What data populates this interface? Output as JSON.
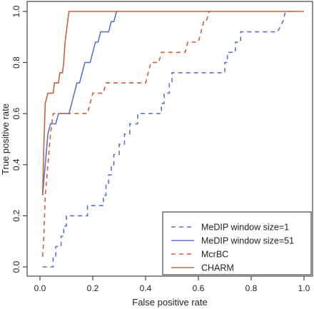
{
  "chart_data": {
    "type": "line",
    "title": "",
    "xlabel": "False positive rate",
    "ylabel": "True positive rate",
    "xlim": [
      0,
      1
    ],
    "ylim": [
      0,
      1
    ],
    "xticks": [
      "0.0",
      "0.2",
      "0.4",
      "0.6",
      "0.8",
      "1.0"
    ],
    "yticks": [
      "0.0",
      "0.2",
      "0.4",
      "0.6",
      "0.8",
      "1.0"
    ],
    "grid": false,
    "legend_position": "bottom-right",
    "series": [
      {
        "name": "MeDIP window size=1",
        "color": "#5b73c8",
        "dash": "dashed",
        "points": [
          [
            0.01,
            0
          ],
          [
            0.05,
            0
          ],
          [
            0.05,
            0.04
          ],
          [
            0.06,
            0.04
          ],
          [
            0.06,
            0.08
          ],
          [
            0.08,
            0.08
          ],
          [
            0.08,
            0.12
          ],
          [
            0.09,
            0.12
          ],
          [
            0.09,
            0.16
          ],
          [
            0.1,
            0.16
          ],
          [
            0.1,
            0.2
          ],
          [
            0.18,
            0.2
          ],
          [
            0.18,
            0.24
          ],
          [
            0.24,
            0.24
          ],
          [
            0.24,
            0.28
          ],
          [
            0.25,
            0.28
          ],
          [
            0.25,
            0.32
          ],
          [
            0.26,
            0.32
          ],
          [
            0.26,
            0.36
          ],
          [
            0.27,
            0.36
          ],
          [
            0.27,
            0.4
          ],
          [
            0.28,
            0.4
          ],
          [
            0.28,
            0.44
          ],
          [
            0.3,
            0.44
          ],
          [
            0.3,
            0.48
          ],
          [
            0.32,
            0.48
          ],
          [
            0.32,
            0.52
          ],
          [
            0.34,
            0.52
          ],
          [
            0.34,
            0.56
          ],
          [
            0.37,
            0.56
          ],
          [
            0.37,
            0.6
          ],
          [
            0.46,
            0.6
          ],
          [
            0.46,
            0.64
          ],
          [
            0.47,
            0.64
          ],
          [
            0.47,
            0.68
          ],
          [
            0.49,
            0.68
          ],
          [
            0.49,
            0.72
          ],
          [
            0.5,
            0.72
          ],
          [
            0.5,
            0.76
          ],
          [
            0.7,
            0.76
          ],
          [
            0.7,
            0.8
          ],
          [
            0.71,
            0.8
          ],
          [
            0.71,
            0.84
          ],
          [
            0.74,
            0.84
          ],
          [
            0.74,
            0.88
          ],
          [
            0.76,
            0.88
          ],
          [
            0.76,
            0.92
          ],
          [
            0.9,
            0.92
          ],
          [
            0.92,
            0.96
          ],
          [
            0.93,
            1.0
          ],
          [
            0.96,
            1.0
          ]
        ]
      },
      {
        "name": "MeDIP window size=51",
        "color": "#5b73c8",
        "dash": "solid",
        "points": [
          [
            0.01,
            0.28
          ],
          [
            0.02,
            0.4
          ],
          [
            0.03,
            0.52
          ],
          [
            0.04,
            0.56
          ],
          [
            0.06,
            0.56
          ],
          [
            0.07,
            0.6
          ],
          [
            0.11,
            0.6
          ],
          [
            0.12,
            0.64
          ],
          [
            0.13,
            0.68
          ],
          [
            0.14,
            0.72
          ],
          [
            0.15,
            0.72
          ],
          [
            0.16,
            0.76
          ],
          [
            0.17,
            0.8
          ],
          [
            0.19,
            0.8
          ],
          [
            0.2,
            0.84
          ],
          [
            0.21,
            0.88
          ],
          [
            0.22,
            0.88
          ],
          [
            0.23,
            0.92
          ],
          [
            0.26,
            0.92
          ],
          [
            0.27,
            0.96
          ],
          [
            0.28,
            0.96
          ],
          [
            0.29,
            1.0
          ],
          [
            0.3,
            1.0
          ]
        ]
      },
      {
        "name": "McrBC",
        "color": "#c8603c",
        "dash": "dashed",
        "points": [
          [
            0.01,
            0.04
          ],
          [
            0.015,
            0.12
          ],
          [
            0.02,
            0.28
          ],
          [
            0.03,
            0.4
          ],
          [
            0.04,
            0.52
          ],
          [
            0.05,
            0.6
          ],
          [
            0.18,
            0.6
          ],
          [
            0.19,
            0.64
          ],
          [
            0.2,
            0.68
          ],
          [
            0.24,
            0.68
          ],
          [
            0.25,
            0.72
          ],
          [
            0.4,
            0.72
          ],
          [
            0.41,
            0.76
          ],
          [
            0.42,
            0.8
          ],
          [
            0.45,
            0.8
          ],
          [
            0.46,
            0.84
          ],
          [
            0.55,
            0.84
          ],
          [
            0.56,
            0.88
          ],
          [
            0.6,
            0.88
          ],
          [
            0.61,
            0.92
          ],
          [
            0.62,
            0.96
          ],
          [
            0.63,
            0.96
          ],
          [
            0.64,
            1.0
          ],
          [
            0.66,
            1.0
          ]
        ]
      },
      {
        "name": "CHARM",
        "color": "#c8603c",
        "dash": "solid",
        "points": [
          [
            0.01,
            0.28
          ],
          [
            0.015,
            0.48
          ],
          [
            0.02,
            0.64
          ],
          [
            0.03,
            0.68
          ],
          [
            0.05,
            0.68
          ],
          [
            0.055,
            0.72
          ],
          [
            0.07,
            0.72
          ],
          [
            0.075,
            0.76
          ],
          [
            0.085,
            0.76
          ],
          [
            0.09,
            0.8
          ],
          [
            0.095,
            0.88
          ],
          [
            0.1,
            0.92
          ],
          [
            0.105,
            0.96
          ],
          [
            0.11,
            1.0
          ],
          [
            0.13,
            1.0
          ],
          [
            1.0,
            1.0
          ]
        ]
      }
    ]
  }
}
